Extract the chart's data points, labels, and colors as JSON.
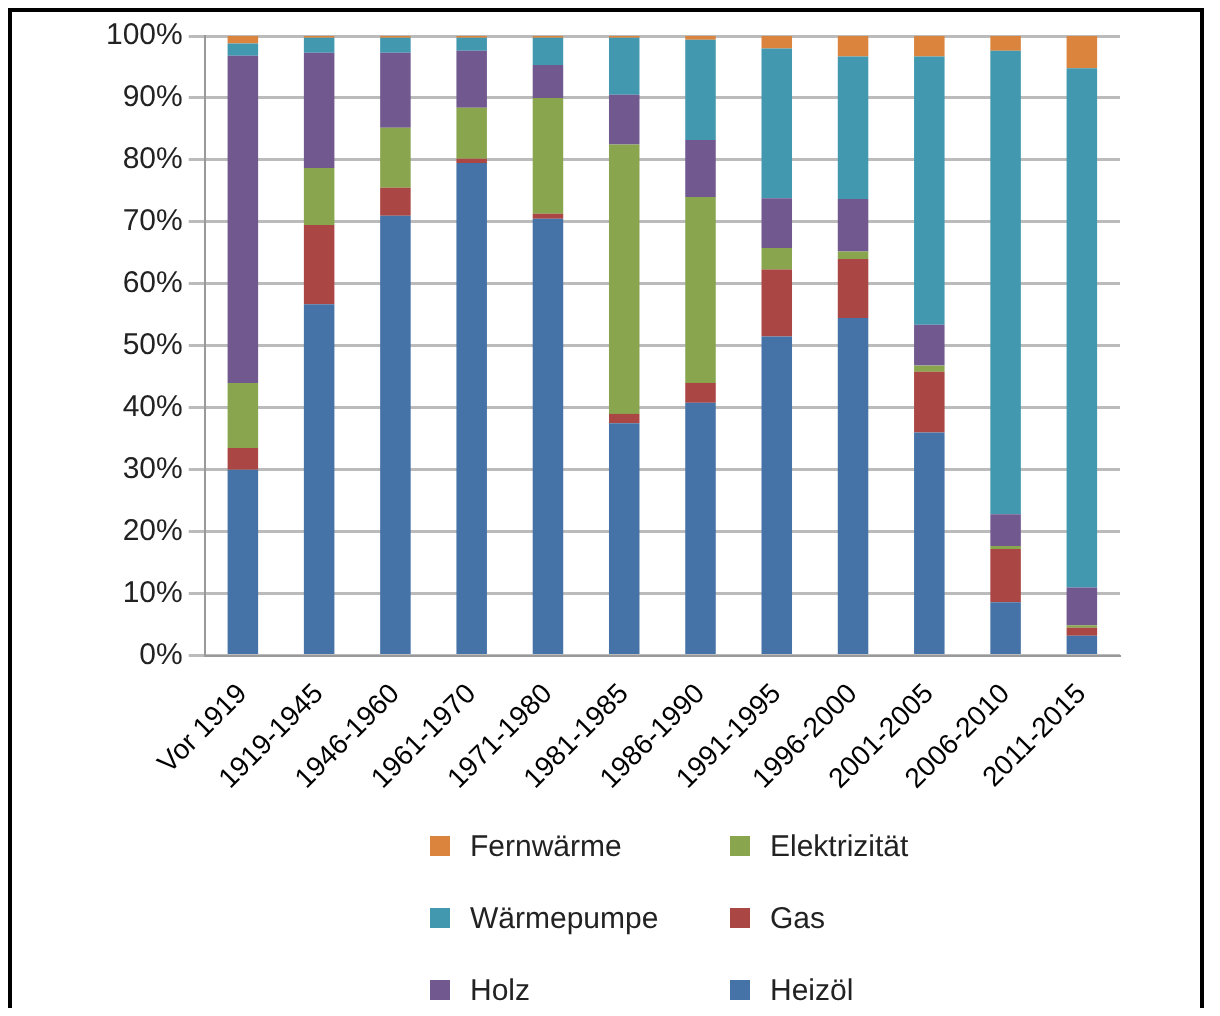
{
  "chart_data": {
    "type": "bar",
    "stacked": true,
    "categories": [
      "Vor 1919",
      "1919-1945",
      "1946-1960",
      "1961-1970",
      "1971-1980",
      "1981-1985",
      "1986-1990",
      "1991-1995",
      "1996-2000",
      "2001-2005",
      "2006-2010",
      "2011-2015"
    ],
    "series": [
      {
        "name": "Heizöl",
        "color": "#4572a7",
        "values": [
          30,
          56.7,
          71,
          79.5,
          70.5,
          37.5,
          40.8,
          51.5,
          54.5,
          36,
          8.6,
          3.2
        ]
      },
      {
        "name": "Gas",
        "color": "#aa4643",
        "values": [
          3.5,
          12.8,
          4.5,
          0.7,
          0.8,
          1.5,
          3.2,
          10.8,
          9.5,
          9.8,
          8.6,
          1.3
        ]
      },
      {
        "name": "Elektrizität",
        "color": "#89a54e",
        "values": [
          10.5,
          9.2,
          9.7,
          8.2,
          18.7,
          43.5,
          30,
          3.5,
          1.2,
          1,
          0.5,
          0.4
        ]
      },
      {
        "name": "Holz",
        "color": "#71588f",
        "values": [
          52.8,
          18.6,
          12.1,
          9.2,
          5.3,
          8,
          9.2,
          8,
          8.5,
          6.6,
          5.1,
          6.1
        ]
      },
      {
        "name": "Wärmepumpe",
        "color": "#4198af",
        "values": [
          2,
          2.4,
          2.4,
          2.1,
          4.4,
          9.2,
          16.2,
          24.2,
          23,
          43.3,
          74.8,
          83.8
        ]
      },
      {
        "name": "Fernwärme",
        "color": "#db843d",
        "values": [
          1.2,
          0.3,
          0.3,
          0.3,
          0.3,
          0.3,
          0.6,
          2,
          3.3,
          3.3,
          2.4,
          5.2
        ]
      }
    ],
    "ylim": [
      0,
      100
    ],
    "yticks": [
      {
        "value": 0,
        "label": "0%"
      },
      {
        "value": 10,
        "label": "10%"
      },
      {
        "value": 20,
        "label": "20%"
      },
      {
        "value": 30,
        "label": "30%"
      },
      {
        "value": 40,
        "label": "40%"
      },
      {
        "value": 50,
        "label": "50%"
      },
      {
        "value": 60,
        "label": "60%"
      },
      {
        "value": 70,
        "label": "70%"
      },
      {
        "value": 80,
        "label": "80%"
      },
      {
        "value": 90,
        "label": "90%"
      },
      {
        "value": 100,
        "label": "100%"
      }
    ],
    "grid": "y",
    "legend": "bottom"
  }
}
